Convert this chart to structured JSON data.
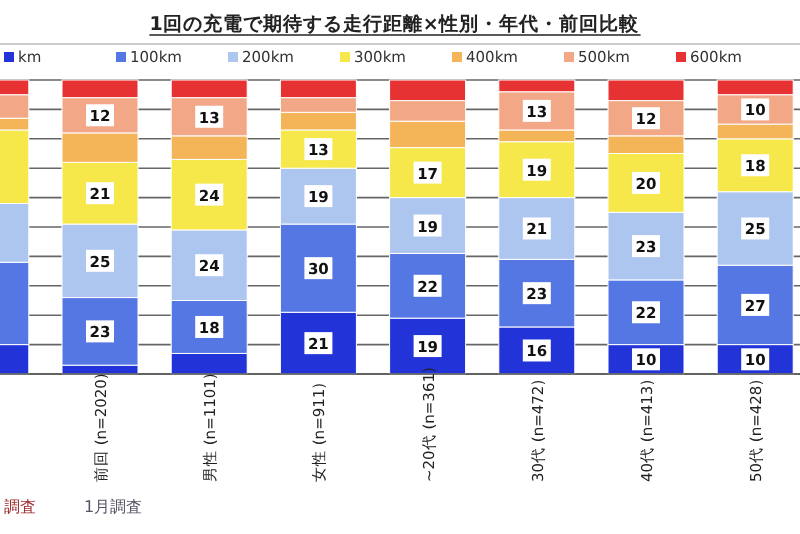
{
  "chart_data": {
    "type": "bar",
    "stacked": true,
    "title": "1回の充電で期待する走行距離×性別・年代・前回比較",
    "categories": [
      null,
      "前回 (n=2020)",
      "男性 (n=1101)",
      "女性 (n=911)",
      "~20代 (n=361)",
      "30代 (n=472)",
      "40代 (n=413)",
      "50代 (n=428)"
    ],
    "series": [
      {
        "name": "km",
        "color": "#2233d8",
        "values": [
          10,
          3,
          7,
          21,
          19,
          16,
          10,
          10
        ],
        "value_labels": [
          null,
          null,
          null,
          "21",
          "19",
          "16",
          "10",
          "10"
        ]
      },
      {
        "name": "100km",
        "color": "#5577e4",
        "values": [
          28,
          23,
          18,
          30,
          22,
          23,
          22,
          27
        ],
        "value_labels": [
          null,
          "23",
          "18",
          "30",
          "22",
          "23",
          "22",
          "27"
        ]
      },
      {
        "name": "200km",
        "color": "#acc6f0",
        "values": [
          20,
          25,
          24,
          19,
          19,
          21,
          23,
          25
        ],
        "value_labels": [
          null,
          "25",
          "24",
          "19",
          "19",
          "21",
          "23",
          "25"
        ]
      },
      {
        "name": "300km",
        "color": "#f6e84a",
        "values": [
          25,
          21,
          24,
          13,
          17,
          19,
          20,
          18
        ],
        "value_labels": [
          null,
          "21",
          "24",
          "13",
          "17",
          "19",
          "20",
          "18"
        ]
      },
      {
        "name": "400km",
        "color": "#f4b458",
        "values": [
          4,
          10,
          8,
          6,
          9,
          4,
          6,
          5
        ]
      },
      {
        "name": "500km",
        "color": "#f2a886",
        "values": [
          8,
          12,
          13,
          5,
          7,
          13,
          12,
          10
        ],
        "value_labels": [
          null,
          "12",
          "13",
          null,
          null,
          "13",
          "12",
          "10"
        ]
      },
      {
        "name": "600km",
        "color": "#e63232",
        "values": [
          5,
          6,
          6,
          6,
          7,
          4,
          7,
          5
        ]
      }
    ],
    "ylim": [
      0,
      100
    ],
    "yticks": [
      {
        "value": 0,
        "label": null
      },
      {
        "value": 10,
        "label": null
      },
      {
        "value": 20,
        "label": null
      },
      {
        "value": 30,
        "label": null
      },
      {
        "value": 40,
        "label": null
      },
      {
        "value": 50,
        "label": null
      },
      {
        "value": 60,
        "label": null
      },
      {
        "value": 70,
        "label": null
      },
      {
        "value": 80,
        "label": null
      },
      {
        "value": 90,
        "label": null
      },
      {
        "value": 100,
        "label": null
      }
    ],
    "grid": "y",
    "legend": "top",
    "tick_labels": "x",
    "annotations": [
      "調査",
      "1月調査"
    ]
  }
}
